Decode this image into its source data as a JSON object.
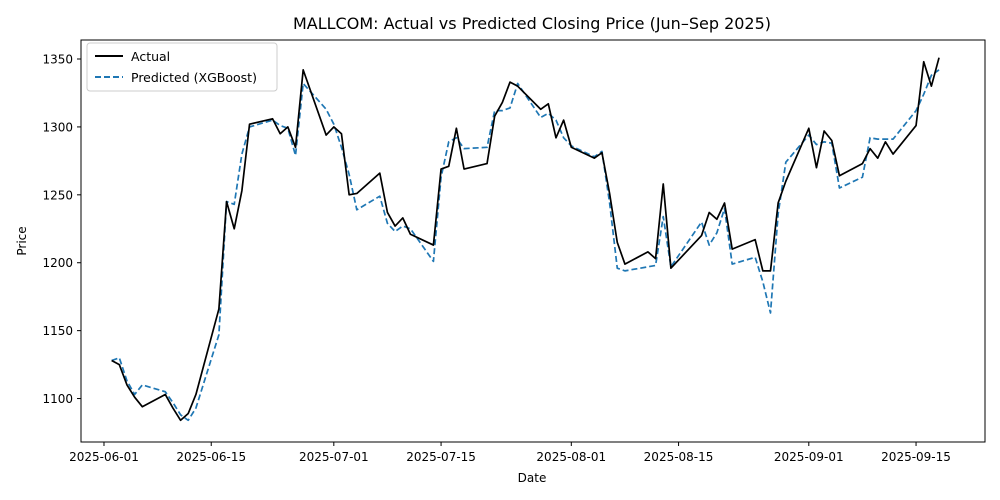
{
  "chart_data": {
    "type": "line",
    "title": "MALLCOM: Actual vs Predicted Closing Price (Jun–Sep 2025)",
    "xlabel": "Date",
    "ylabel": "Price",
    "xlim": [
      "2025-05-29",
      "2025-09-24"
    ],
    "ylim": [
      1068,
      1364
    ],
    "x_ticks": [
      "2025-06-01",
      "2025-06-15",
      "2025-07-01",
      "2025-07-15",
      "2025-08-01",
      "2025-08-15",
      "2025-09-01",
      "2025-09-15"
    ],
    "y_ticks": [
      1100,
      1150,
      1200,
      1250,
      1300,
      1350
    ],
    "legend_position": "top-left",
    "grid": false,
    "series": [
      {
        "name": "Actual",
        "color": "#000000",
        "dash": "solid",
        "points": [
          [
            "2025-06-02",
            1128
          ],
          [
            "2025-06-03",
            1125
          ],
          [
            "2025-06-04",
            1110
          ],
          [
            "2025-06-05",
            1101
          ],
          [
            "2025-06-06",
            1094
          ],
          [
            "2025-06-09",
            1103
          ],
          [
            "2025-06-10",
            1093
          ],
          [
            "2025-06-11",
            1084
          ],
          [
            "2025-06-12",
            1089
          ],
          [
            "2025-06-13",
            1103
          ],
          [
            "2025-06-16",
            1166
          ],
          [
            "2025-06-17",
            1245
          ],
          [
            "2025-06-18",
            1225
          ],
          [
            "2025-06-19",
            1253
          ],
          [
            "2025-06-20",
            1302
          ],
          [
            "2025-06-23",
            1306
          ],
          [
            "2025-06-24",
            1295
          ],
          [
            "2025-06-25",
            1300
          ],
          [
            "2025-06-26",
            1285
          ],
          [
            "2025-06-27",
            1342
          ],
          [
            "2025-06-30",
            1294
          ],
          [
            "2025-07-01",
            1300
          ],
          [
            "2025-07-02",
            1295
          ],
          [
            "2025-07-03",
            1250
          ],
          [
            "2025-07-04",
            1251
          ],
          [
            "2025-07-07",
            1266
          ],
          [
            "2025-07-08",
            1237
          ],
          [
            "2025-07-09",
            1227
          ],
          [
            "2025-07-10",
            1233
          ],
          [
            "2025-07-11",
            1221
          ],
          [
            "2025-07-14",
            1213
          ],
          [
            "2025-07-15",
            1269
          ],
          [
            "2025-07-16",
            1271
          ],
          [
            "2025-07-17",
            1299
          ],
          [
            "2025-07-18",
            1269
          ],
          [
            "2025-07-21",
            1273
          ],
          [
            "2025-07-22",
            1308
          ],
          [
            "2025-07-23",
            1318
          ],
          [
            "2025-07-24",
            1333
          ],
          [
            "2025-07-25",
            1330
          ],
          [
            "2025-07-28",
            1313
          ],
          [
            "2025-07-29",
            1317
          ],
          [
            "2025-07-30",
            1292
          ],
          [
            "2025-07-31",
            1305
          ],
          [
            "2025-08-01",
            1285
          ],
          [
            "2025-08-04",
            1277
          ],
          [
            "2025-08-05",
            1281
          ],
          [
            "2025-08-06",
            1251
          ],
          [
            "2025-08-07",
            1215
          ],
          [
            "2025-08-08",
            1199
          ],
          [
            "2025-08-11",
            1208
          ],
          [
            "2025-08-12",
            1203
          ],
          [
            "2025-08-13",
            1258
          ],
          [
            "2025-08-14",
            1196
          ],
          [
            "2025-08-18",
            1220
          ],
          [
            "2025-08-19",
            1237
          ],
          [
            "2025-08-20",
            1232
          ],
          [
            "2025-08-21",
            1244
          ],
          [
            "2025-08-22",
            1210
          ],
          [
            "2025-08-25",
            1217
          ],
          [
            "2025-08-26",
            1194
          ],
          [
            "2025-08-27",
            1194
          ],
          [
            "2025-08-28",
            1244
          ],
          [
            "2025-08-29",
            1260
          ],
          [
            "2025-09-01",
            1299
          ],
          [
            "2025-09-02",
            1270
          ],
          [
            "2025-09-03",
            1297
          ],
          [
            "2025-09-04",
            1290
          ],
          [
            "2025-09-05",
            1264
          ],
          [
            "2025-09-08",
            1273
          ],
          [
            "2025-09-09",
            1284
          ],
          [
            "2025-09-10",
            1277
          ],
          [
            "2025-09-11",
            1289
          ],
          [
            "2025-09-12",
            1280
          ],
          [
            "2025-09-15",
            1301
          ],
          [
            "2025-09-16",
            1348
          ],
          [
            "2025-09-17",
            1330
          ],
          [
            "2025-09-18",
            1351
          ]
        ]
      },
      {
        "name": "Predicted (XGBoost)",
        "color": "#1f77b4",
        "dash": "dashed",
        "points": [
          [
            "2025-06-02",
            1128
          ],
          [
            "2025-06-03",
            1130
          ],
          [
            "2025-06-04",
            1113
          ],
          [
            "2025-06-05",
            1103
          ],
          [
            "2025-06-06",
            1110
          ],
          [
            "2025-06-09",
            1105
          ],
          [
            "2025-06-10",
            1097
          ],
          [
            "2025-06-11",
            1088
          ],
          [
            "2025-06-12",
            1084
          ],
          [
            "2025-06-13",
            1093
          ],
          [
            "2025-06-16",
            1147
          ],
          [
            "2025-06-17",
            1245
          ],
          [
            "2025-06-18",
            1243
          ],
          [
            "2025-06-19",
            1280
          ],
          [
            "2025-06-20",
            1300
          ],
          [
            "2025-06-23",
            1305
          ],
          [
            "2025-06-24",
            1301
          ],
          [
            "2025-06-25",
            1299
          ],
          [
            "2025-06-26",
            1279
          ],
          [
            "2025-06-27",
            1332
          ],
          [
            "2025-06-30",
            1313
          ],
          [
            "2025-07-01",
            1302
          ],
          [
            "2025-07-02",
            1285
          ],
          [
            "2025-07-03",
            1265
          ],
          [
            "2025-07-04",
            1239
          ],
          [
            "2025-07-07",
            1249
          ],
          [
            "2025-07-08",
            1229
          ],
          [
            "2025-07-09",
            1223
          ],
          [
            "2025-07-10",
            1227
          ],
          [
            "2025-07-11",
            1225
          ],
          [
            "2025-07-14",
            1201
          ],
          [
            "2025-07-15",
            1263
          ],
          [
            "2025-07-16",
            1289
          ],
          [
            "2025-07-17",
            1292
          ],
          [
            "2025-07-18",
            1284
          ],
          [
            "2025-07-21",
            1285
          ],
          [
            "2025-07-22",
            1312
          ],
          [
            "2025-07-23",
            1312
          ],
          [
            "2025-07-24",
            1314
          ],
          [
            "2025-07-25",
            1332
          ],
          [
            "2025-07-28",
            1307
          ],
          [
            "2025-07-29",
            1310
          ],
          [
            "2025-07-30",
            1305
          ],
          [
            "2025-07-31",
            1292
          ],
          [
            "2025-08-01",
            1286
          ],
          [
            "2025-08-04",
            1278
          ],
          [
            "2025-08-05",
            1282
          ],
          [
            "2025-08-06",
            1244
          ],
          [
            "2025-08-07",
            1196
          ],
          [
            "2025-08-08",
            1194
          ],
          [
            "2025-08-11",
            1197
          ],
          [
            "2025-08-12",
            1198
          ],
          [
            "2025-08-13",
            1234
          ],
          [
            "2025-08-14",
            1197
          ],
          [
            "2025-08-18",
            1230
          ],
          [
            "2025-08-19",
            1213
          ],
          [
            "2025-08-20",
            1222
          ],
          [
            "2025-08-21",
            1240
          ],
          [
            "2025-08-22",
            1199
          ],
          [
            "2025-08-25",
            1204
          ],
          [
            "2025-08-26",
            1186
          ],
          [
            "2025-08-27",
            1163
          ],
          [
            "2025-08-28",
            1236
          ],
          [
            "2025-08-29",
            1274
          ],
          [
            "2025-09-01",
            1294
          ],
          [
            "2025-09-02",
            1287
          ],
          [
            "2025-09-03",
            1289
          ],
          [
            "2025-09-04",
            1288
          ],
          [
            "2025-09-05",
            1255
          ],
          [
            "2025-09-08",
            1263
          ],
          [
            "2025-09-09",
            1292
          ],
          [
            "2025-09-10",
            1291
          ],
          [
            "2025-09-11",
            1291
          ],
          [
            "2025-09-12",
            1291
          ],
          [
            "2025-09-15",
            1312
          ],
          [
            "2025-09-16",
            1324
          ],
          [
            "2025-09-17",
            1338
          ],
          [
            "2025-09-18",
            1342
          ]
        ]
      }
    ]
  }
}
